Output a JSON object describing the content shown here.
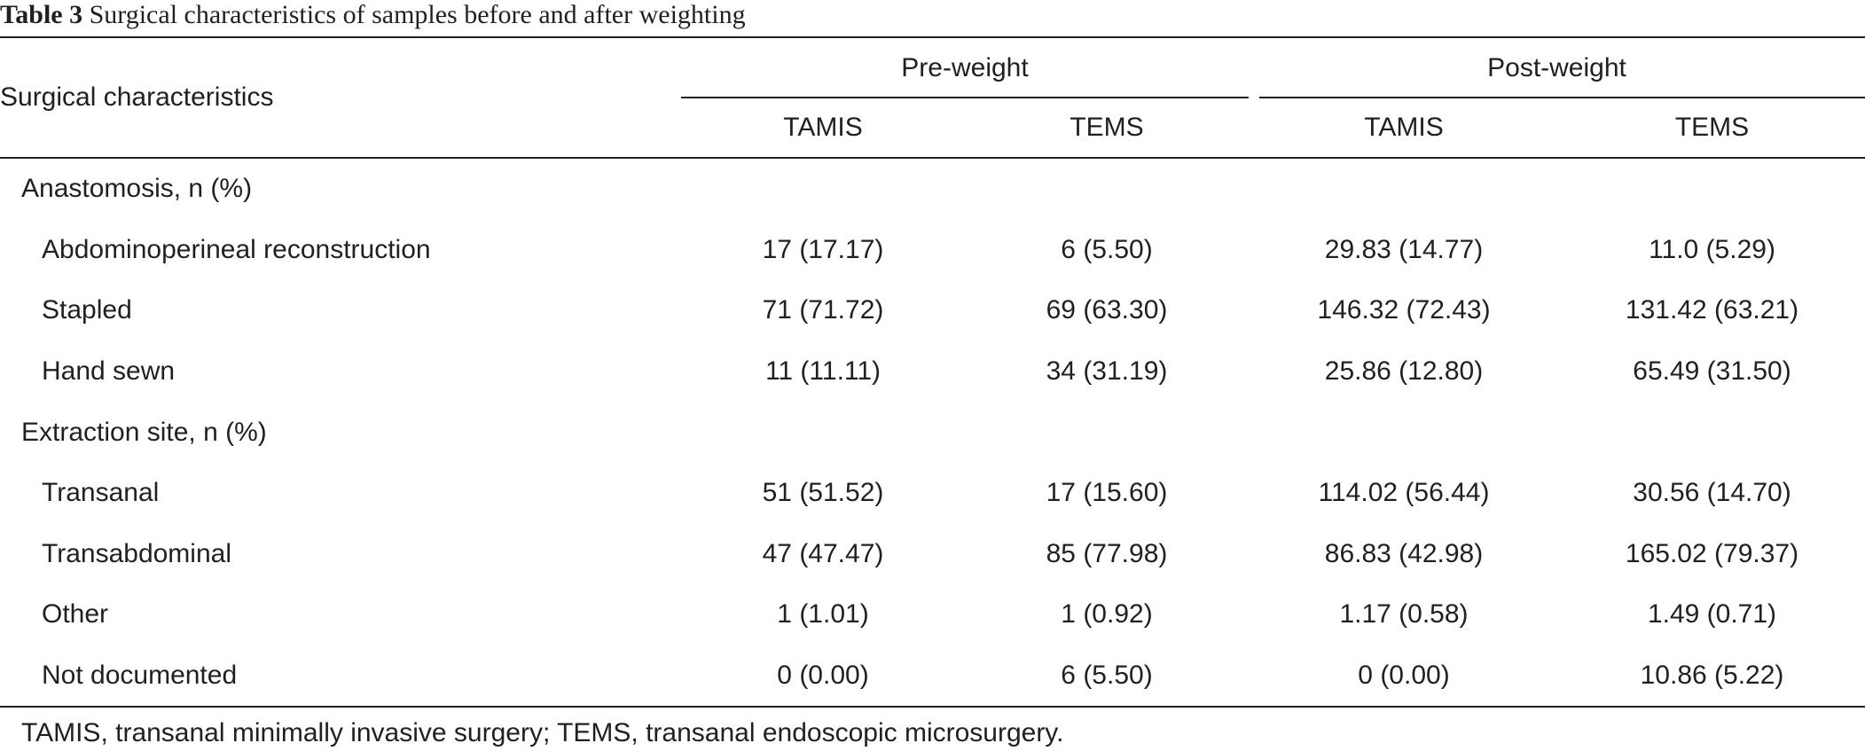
{
  "caption": {
    "number": "Table 3",
    "title": "Surgical characteristics of samples before and after weighting"
  },
  "header": {
    "row_label": "Surgical characteristics",
    "groups": [
      "Pre-weight",
      "Post-weight"
    ],
    "subcolumns": [
      "TAMIS",
      "TEMS",
      "TAMIS",
      "TEMS"
    ]
  },
  "rows": [
    {
      "label": "Anastomosis, n (%)",
      "values": [
        "",
        "",
        "",
        ""
      ]
    },
    {
      "label": "Abdominoperineal reconstruction",
      "values": [
        "17 (17.17)",
        "6 (5.50)",
        "29.83 (14.77)",
        "11.0 (5.29)"
      ]
    },
    {
      "label": "Stapled",
      "values": [
        "71 (71.72)",
        "69 (63.30)",
        "146.32 (72.43)",
        "131.42 (63.21)"
      ]
    },
    {
      "label": "Hand sewn",
      "values": [
        "11 (11.11)",
        "34 (31.19)",
        "25.86 (12.80)",
        "65.49 (31.50)"
      ]
    },
    {
      "label": "Extraction site, n (%)",
      "values": [
        "",
        "",
        "",
        ""
      ]
    },
    {
      "label": "Transanal",
      "values": [
        "51 (51.52)",
        "17 (15.60)",
        "114.02 (56.44)",
        "30.56 (14.70)"
      ]
    },
    {
      "label": "Transabdominal",
      "values": [
        "47 (47.47)",
        "85 (77.98)",
        "86.83 (42.98)",
        "165.02 (79.37)"
      ]
    },
    {
      "label": "Other",
      "values": [
        "1 (1.01)",
        "1 (0.92)",
        "1.17 (0.58)",
        "1.49 (0.71)"
      ]
    },
    {
      "label": "Not documented",
      "values": [
        "0 (0.00)",
        "6 (5.50)",
        "0 (0.00)",
        "10.86 (5.22)"
      ]
    }
  ],
  "footnote": "TAMIS, transanal minimally invasive surgery; TEMS, transanal endoscopic microsurgery."
}
